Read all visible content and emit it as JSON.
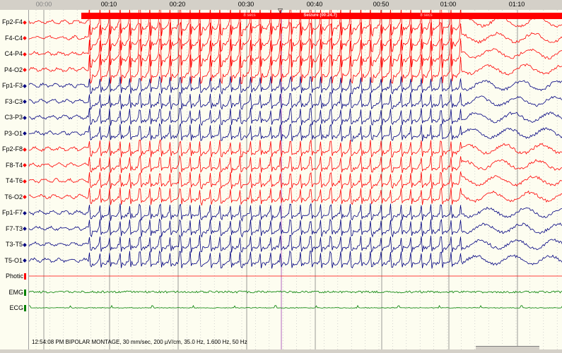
{
  "timebar": {
    "labels": [
      "00:00",
      "00:10",
      "00:20",
      "00:30",
      "00:40",
      "00:50",
      "01:00",
      "01:10"
    ]
  },
  "banner": {
    "title": "Seizure (00:24.7)",
    "left_note": "8 secs",
    "right_note": "8 secs",
    "color": "#ff0000",
    "marker_icon": "triangle-down-icon"
  },
  "channels": [
    {
      "label": "Fp2-F4",
      "color": "#ff0000",
      "mark": "diamond"
    },
    {
      "label": "F4-C4",
      "color": "#ff0000",
      "mark": "diamond"
    },
    {
      "label": "C4-P4",
      "color": "#ff0000",
      "mark": "diamond"
    },
    {
      "label": "P4-O2",
      "color": "#ff0000",
      "mark": "diamond"
    },
    {
      "label": "Fp1-F3",
      "color": "#000080",
      "mark": "diamond"
    },
    {
      "label": "F3-C3",
      "color": "#000080",
      "mark": "diamond"
    },
    {
      "label": "C3-P3",
      "color": "#000080",
      "mark": "diamond"
    },
    {
      "label": "P3-O1",
      "color": "#000080",
      "mark": "diamond"
    },
    {
      "label": "Fp2-F8",
      "color": "#ff0000",
      "mark": "diamond"
    },
    {
      "label": "F8-T4",
      "color": "#ff0000",
      "mark": "diamond"
    },
    {
      "label": "T4-T6",
      "color": "#ff0000",
      "mark": "diamond"
    },
    {
      "label": "T6-O2",
      "color": "#ff0000",
      "mark": "diamond"
    },
    {
      "label": "Fp1-F7",
      "color": "#000080",
      "mark": "diamond"
    },
    {
      "label": "F7-T3",
      "color": "#000080",
      "mark": "diamond"
    },
    {
      "label": "T3-T5",
      "color": "#000080",
      "mark": "diamond"
    },
    {
      "label": "T5-O1",
      "color": "#000080",
      "mark": "diamond"
    },
    {
      "label": "Photic",
      "color": "#ff0000",
      "mark": "bar"
    },
    {
      "label": "EMG",
      "color": "#008000",
      "mark": "bar"
    },
    {
      "label": "ECG",
      "color": "#008000",
      "mark": "bar"
    }
  ],
  "status": "12:54:08 PM BIPOLAR MONTAGE, 30 mm/sec, 200 µV/cm, 35.0 Hz, 1.600 Hz, 50 Hz"
}
